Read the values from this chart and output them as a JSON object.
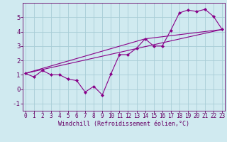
{
  "background_color": "#d0eaf0",
  "grid_color": "#a8cdd6",
  "line_color": "#880088",
  "marker_color": "#880088",
  "xlabel": "Windchill (Refroidissement éolien,°C)",
  "xlabel_fontsize": 6.0,
  "tick_fontsize": 5.5,
  "ytick_fontsize": 6.5,
  "xlim": [
    0,
    23
  ],
  "ylim": [
    -1.5,
    6.0
  ],
  "xticks": [
    0,
    1,
    2,
    3,
    4,
    5,
    6,
    7,
    8,
    9,
    10,
    11,
    12,
    13,
    14,
    15,
    16,
    17,
    18,
    19,
    20,
    21,
    22,
    23
  ],
  "yticks": [
    -1,
    0,
    1,
    2,
    3,
    4,
    5
  ],
  "curve1_x": [
    0,
    1,
    2,
    3,
    4,
    5,
    6,
    7,
    8,
    9,
    10,
    11,
    12,
    13,
    14,
    15,
    16,
    17,
    18,
    19,
    20,
    21,
    22,
    23
  ],
  "curve1_y": [
    1.1,
    0.85,
    1.3,
    1.0,
    1.0,
    0.7,
    0.6,
    -0.2,
    0.2,
    -0.4,
    1.05,
    2.4,
    2.4,
    2.85,
    3.5,
    3.0,
    3.0,
    4.1,
    5.3,
    5.5,
    5.4,
    5.55,
    5.05,
    4.15
  ],
  "line1_x": [
    0,
    23
  ],
  "line1_y": [
    1.1,
    4.15
  ],
  "line2_x": [
    0,
    14,
    23
  ],
  "line2_y": [
    1.1,
    3.5,
    4.15
  ]
}
